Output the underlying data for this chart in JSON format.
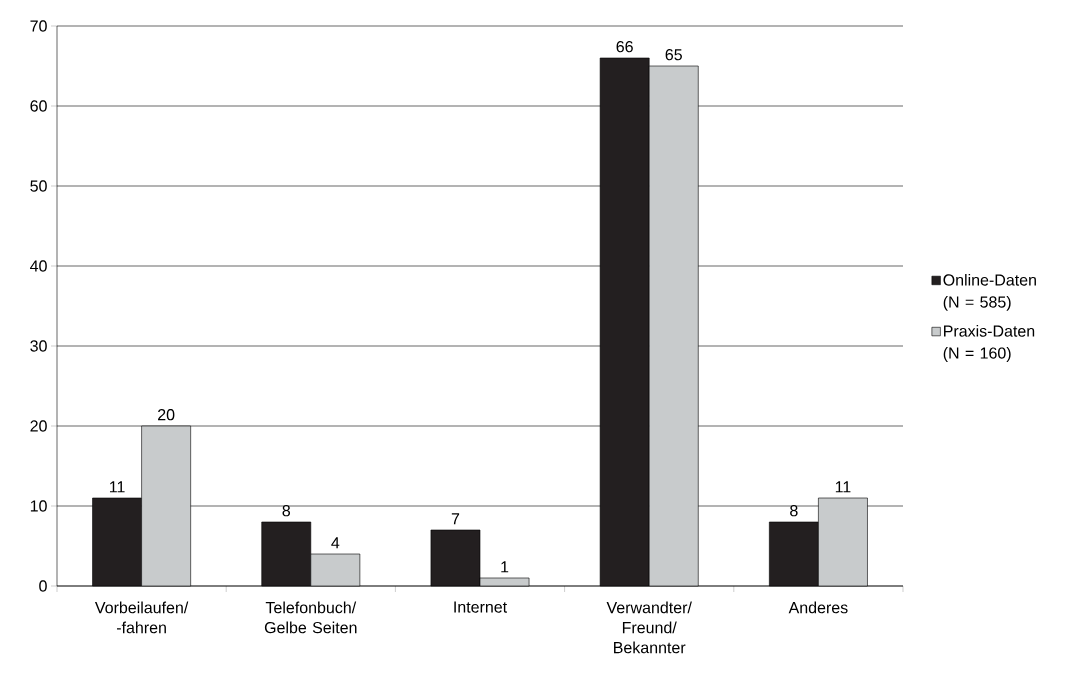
{
  "chart_data": {
    "type": "bar",
    "categories": [
      "Vorbeilaufen/ -fahren",
      "Telefonbuch/ Gelbe Seiten",
      "Internet",
      "Verwandter/ Freund/ Bekannter",
      "Anderes"
    ],
    "series": [
      {
        "name": "Online-Daten (N = 585)",
        "color": "#231f20",
        "values": [
          11,
          8,
          7,
          66,
          8
        ]
      },
      {
        "name": "Praxis-Daten (N = 160)",
        "color": "#c8cbcc",
        "values": [
          20,
          4,
          1,
          65,
          11
        ]
      }
    ],
    "ylim": [
      0,
      70
    ],
    "yticks": [
      0,
      10,
      20,
      30,
      40,
      50,
      60,
      70
    ],
    "grid": "y",
    "legend": "right",
    "data_labels": true
  }
}
